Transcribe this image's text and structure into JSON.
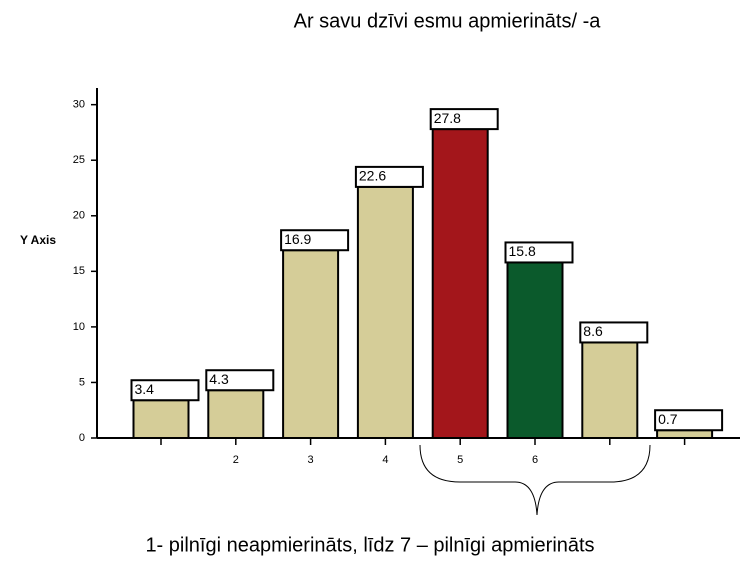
{
  "chart_data": {
    "type": "bar",
    "title": "Ar savu dzīvi esmu apmierināts/ -a",
    "y_label": "Y Axis",
    "footnote": "1- pilnīgi neapmierināts, līdz 7 – pilnīgi apmierināts",
    "categories": [
      null,
      "2",
      "3",
      "4",
      "5",
      "6",
      null,
      null
    ],
    "values": [
      3.4,
      4.3,
      16.9,
      22.6,
      27.8,
      15.8,
      8.6,
      0.7
    ],
    "colors": [
      "#d5cd98",
      "#d5cd98",
      "#d5cd98",
      "#d5cd98",
      "#a3161b",
      "#0b5a2c",
      "#d5cd98",
      "#d5cd98"
    ],
    "ylim": [
      0,
      31.5
    ],
    "yticks": [
      0,
      5,
      10,
      15,
      20,
      25,
      30
    ]
  }
}
